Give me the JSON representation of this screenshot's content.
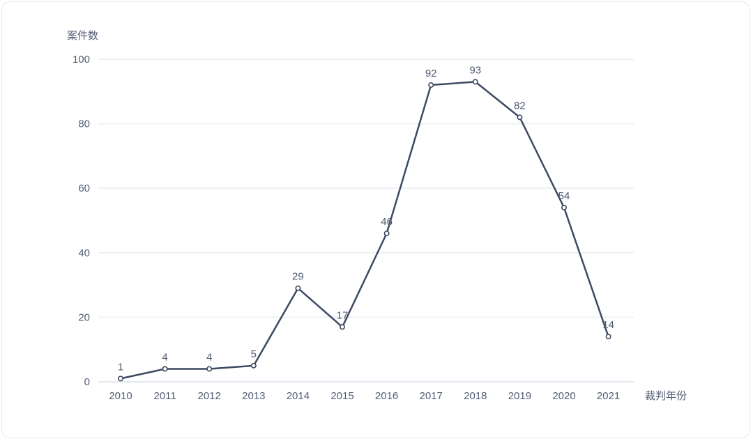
{
  "chart_data": {
    "type": "line",
    "title": "",
    "xlabel": "裁判年份",
    "ylabel": "案件数",
    "categories": [
      "2010",
      "2011",
      "2012",
      "2013",
      "2014",
      "2015",
      "2016",
      "2017",
      "2018",
      "2019",
      "2020",
      "2021"
    ],
    "values": [
      1,
      4,
      4,
      5,
      29,
      17,
      46,
      92,
      93,
      82,
      54,
      14
    ],
    "y_ticks": [
      0,
      20,
      40,
      60,
      80,
      100
    ],
    "ylim": [
      0,
      100
    ],
    "grid": "horizontal",
    "legend_position": "none",
    "colors": {
      "line": "#3d4a63",
      "marker_fill": "#ffffff",
      "marker_stroke": "#3d4a63",
      "gridline": "#edf1f7",
      "baseline": "#e3e8f0",
      "text": "#525d74",
      "background": "#ffffff",
      "card_border": "#e7eaef"
    }
  }
}
